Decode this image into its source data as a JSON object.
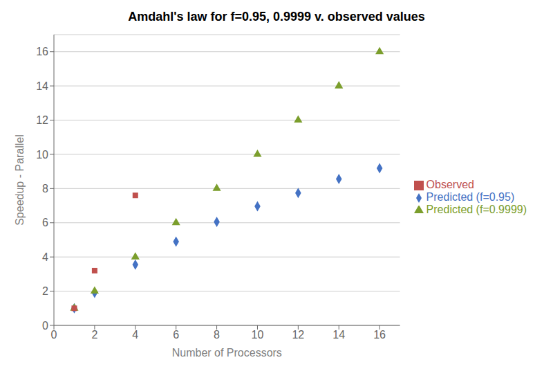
{
  "chart_data": {
    "type": "scatter",
    "title": "Amdahl's law for f=0.95, 0.9999 v. observed values",
    "x_label": "Number of Processors",
    "y_label": "Speedup - Parallel",
    "xlim": [
      0,
      17
    ],
    "ylim": [
      0,
      17
    ],
    "xticks": [
      0,
      2,
      4,
      6,
      8,
      10,
      12,
      14,
      16
    ],
    "yticks": [
      0,
      2,
      4,
      6,
      8,
      10,
      12,
      14,
      16
    ],
    "grid": "y",
    "legend": "right",
    "series": [
      {
        "name": "Predicted (f=0.95)",
        "color": "#4472C4",
        "marker": "diamond",
        "x": [
          1,
          2,
          4,
          6,
          8,
          10,
          12,
          14,
          16
        ],
        "values": [
          1.0,
          1.9,
          3.55,
          4.9,
          6.05,
          6.96,
          7.74,
          8.56,
          9.19
        ]
      },
      {
        "name": "Predicted (f=0.9999)",
        "color": "#7B9E2C",
        "marker": "triangle",
        "x": [
          1,
          2,
          4,
          6,
          8,
          10,
          12,
          14,
          16
        ],
        "values": [
          1.0,
          2.0,
          4.0,
          6.0,
          8.0,
          10.0,
          12.0,
          14.0,
          16.0
        ]
      },
      {
        "name": "Observed",
        "color": "#C0504D",
        "marker": "square",
        "x": [
          1,
          2,
          4
        ],
        "values": [
          1.0,
          3.2,
          7.6
        ]
      }
    ]
  }
}
